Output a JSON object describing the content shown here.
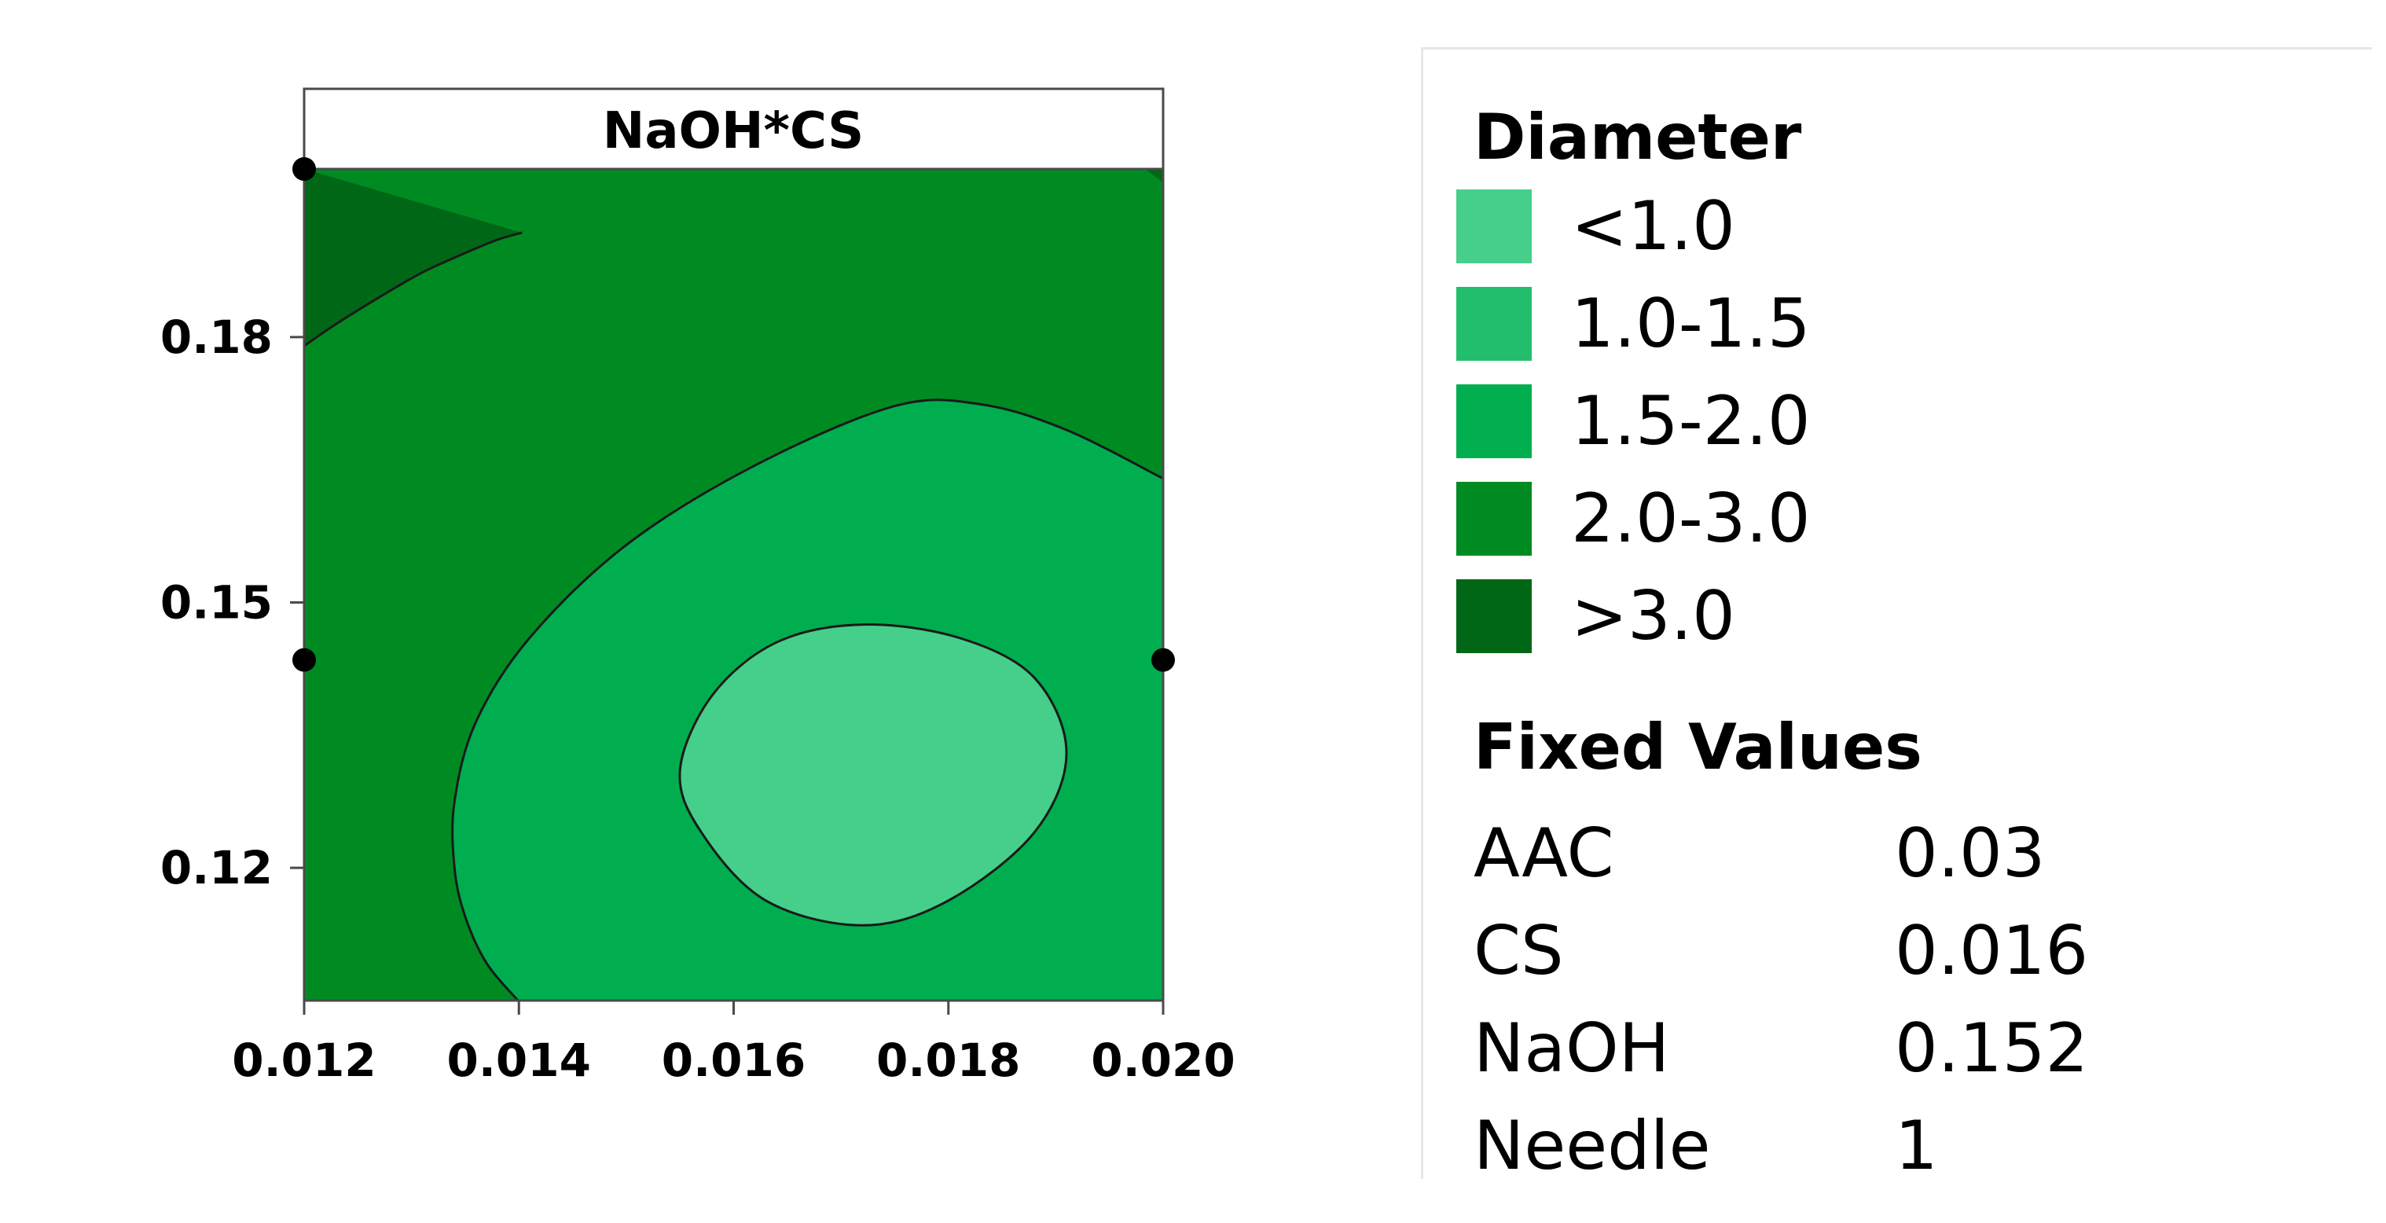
{
  "chart_data": {
    "type": "contour",
    "panel_title": "NaOH*CS",
    "x_ticks": [
      "0.012",
      "0.014",
      "0.016",
      "0.018",
      "0.020"
    ],
    "x_tick_values": [
      0.012,
      0.014,
      0.016,
      0.018,
      0.02
    ],
    "xlim": [
      0.012,
      0.02
    ],
    "y_ticks": [
      "0.12",
      "0.15",
      "0.18"
    ],
    "y_tick_values": [
      0.12,
      0.15,
      0.18
    ],
    "ylim": [
      0.105,
      0.199
    ],
    "center_markers": [
      {
        "x": 0.012,
        "y": 0.199
      },
      {
        "x": 0.012,
        "y": 0.1435
      },
      {
        "x": 0.02,
        "y": 0.1435
      }
    ],
    "levels": [
      {
        "label": "<1.0",
        "color": "#46cf8a"
      },
      {
        "label": "1.0-1.5",
        "color": "#23be6d"
      },
      {
        "label": "1.5-2.0",
        "color": "#00ae4f"
      },
      {
        "label": "2.0-3.0",
        "color": "#008b22"
      },
      {
        "label": ">3.0",
        "color": "#006716"
      }
    ],
    "contour_boundaries": [
      {
        "between": ">3.0 | 2.0-3.0",
        "points": [
          [
            0.012,
            0.179
          ],
          [
            0.0123,
            0.1815
          ],
          [
            0.0127,
            0.1845
          ],
          [
            0.0131,
            0.1873
          ],
          [
            0.0135,
            0.1895
          ],
          [
            0.0138,
            0.191
          ],
          [
            0.01403,
            0.1918
          ]
        ]
      },
      {
        "between": "2.0-3.0 | 1.5-2.0",
        "points": [
          [
            0.014,
            0.1049
          ],
          [
            0.0137,
            0.1092
          ],
          [
            0.0135,
            0.1145
          ],
          [
            0.0134,
            0.12
          ],
          [
            0.0134,
            0.1275
          ],
          [
            0.0136,
            0.1365
          ],
          [
            0.0141,
            0.146
          ],
          [
            0.015,
            0.1565
          ],
          [
            0.0162,
            0.1655
          ],
          [
            0.0175,
            0.1722
          ],
          [
            0.0183,
            0.1724
          ],
          [
            0.0191,
            0.1695
          ],
          [
            0.02,
            0.164
          ]
        ]
      },
      {
        "between": "1.5-2.0 | <1.0",
        "points": [
          [
            0.0172,
            0.1475
          ],
          [
            0.0181,
            0.146
          ],
          [
            0.0188,
            0.1415
          ],
          [
            0.0191,
            0.133
          ],
          [
            0.0188,
            0.124
          ],
          [
            0.018,
            0.1163
          ],
          [
            0.0172,
            0.1135
          ],
          [
            0.0163,
            0.1163
          ],
          [
            0.0157,
            0.124
          ],
          [
            0.0155,
            0.131
          ],
          [
            0.0158,
            0.1395
          ],
          [
            0.0164,
            0.1455
          ]
        ]
      }
    ],
    "legend_title": "Diameter",
    "fixed_values_title": "Fixed Values",
    "fixed_values": [
      {
        "name": "AAC",
        "value": "0.03"
      },
      {
        "name": "CS",
        "value": "0.016"
      },
      {
        "name": "NaOH",
        "value": "0.152"
      },
      {
        "name": "Needle",
        "value": "1"
      }
    ]
  }
}
